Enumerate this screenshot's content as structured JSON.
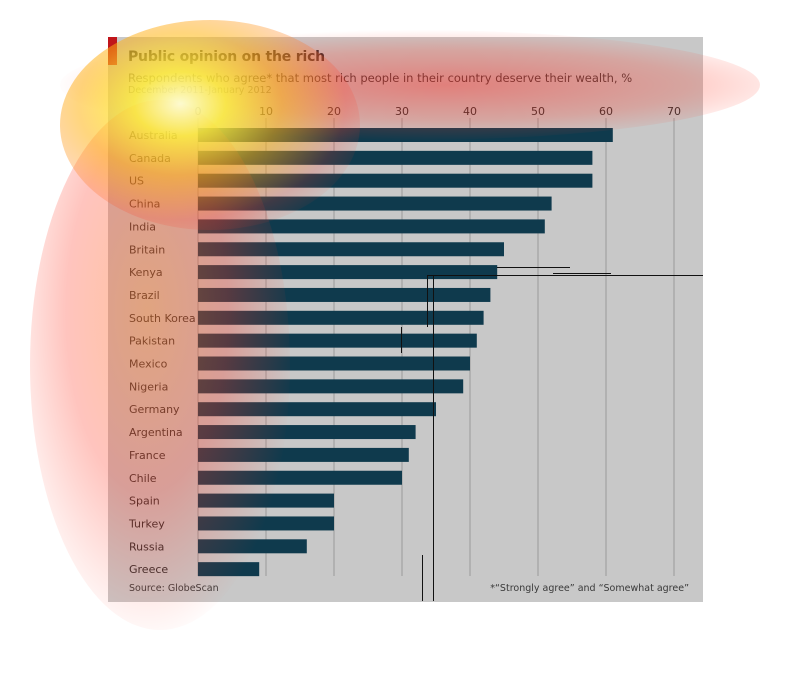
{
  "header": {
    "title": "Public opinion on the rich",
    "subtitle": "Respondents who agree* that most rich people in their country deserve their wealth, %",
    "date": "December 2011-January 2012"
  },
  "footer": {
    "source": "Source: GlobeScan",
    "footnote": "*“Strongly agree” and “Somewhat agree”"
  },
  "colors": {
    "bar": "#0f3a4d",
    "background": "#c8c8c8",
    "grid": "#9a9a9a",
    "label": "#2b2b2b",
    "accent": "#c0151b"
  },
  "chart_data": {
    "type": "bar",
    "orientation": "horizontal",
    "xlim": [
      0,
      70
    ],
    "x_ticks": [
      0,
      10,
      20,
      30,
      40,
      50,
      60,
      70
    ],
    "grid": true,
    "categories": [
      "Australia",
      "Canada",
      "US",
      "China",
      "India",
      "Britain",
      "Kenya",
      "Brazil",
      "South Korea",
      "Pakistan",
      "Mexico",
      "Nigeria",
      "Germany",
      "Argentina",
      "France",
      "Chile",
      "Spain",
      "Turkey",
      "Russia",
      "Greece"
    ],
    "values": [
      61,
      58,
      58,
      52,
      51,
      45,
      44,
      43,
      42,
      41,
      40,
      39,
      35,
      32,
      31,
      30,
      20,
      20,
      16,
      9
    ]
  }
}
